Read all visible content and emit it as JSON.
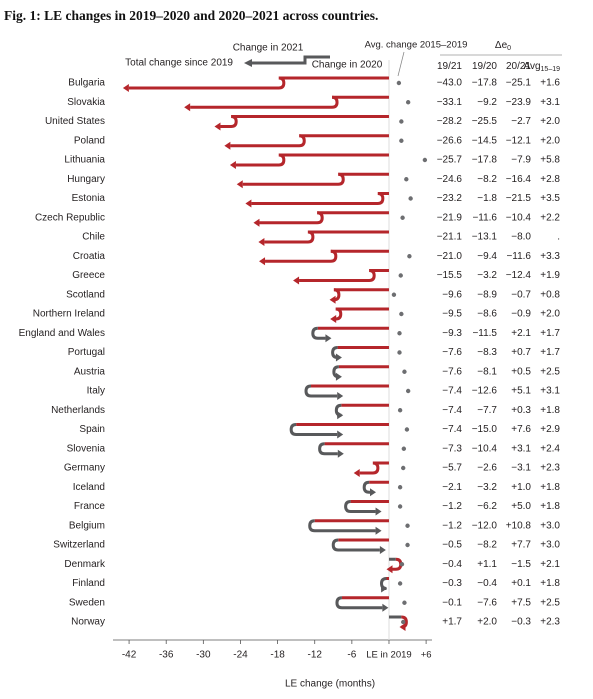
{
  "chart_data": {
    "type": "arrow",
    "title": "Fig. 1: LE changes in 2019–2020 and 2020–2021 across countries.",
    "legend": {
      "change_2021": "Change in 2021",
      "total": "Total change since 2019",
      "change_2020": "Change in 2020",
      "avg": "Avg. change 2015–2019"
    },
    "table_header": "Δe",
    "table_header_subscript": "0",
    "avg_subscript": "15–19",
    "xlabel": "LE change (months)",
    "xlim": [
      -44,
      7
    ],
    "xticks": [
      -42,
      -36,
      -30,
      -24,
      -18,
      -12,
      -6,
      {
        "value": 0,
        "label": "LE in 2019"
      },
      {
        "value": 6,
        "label": "+6"
      }
    ],
    "colors": {
      "decrease": "#b5262b",
      "increase": "#58595b",
      "avg": "#6d6e71"
    },
    "categories": [
      "Bulgaria",
      "Slovakia",
      "United States",
      "Poland",
      "Lithuania",
      "Hungary",
      "Estonia",
      "Czech Republic",
      "Chile",
      "Croatia",
      "Greece",
      "Scotland",
      "Northern Ireland",
      "England and Wales",
      "Portugal",
      "Austria",
      "Italy",
      "Netherlands",
      "Spain",
      "Slovenia",
      "Germany",
      "Iceland",
      "France",
      "Belgium",
      "Switzerland",
      "Denmark",
      "Finland",
      "Sweden",
      "Norway"
    ],
    "series": [
      {
        "name": "19/21",
        "values": [
          -43.0,
          -33.1,
          -28.2,
          -26.6,
          -25.7,
          -24.6,
          -23.2,
          -21.9,
          -21.1,
          -21.0,
          -15.5,
          -9.6,
          -9.5,
          -9.3,
          -7.6,
          -7.6,
          -7.4,
          -7.4,
          -7.4,
          -7.3,
          -5.7,
          -2.1,
          -1.2,
          -1.2,
          -0.5,
          -0.4,
          -0.3,
          -0.1,
          1.7
        ],
        "value_labels": [
          "−43.0",
          "−33.1",
          "−28.2",
          "−26.6",
          "−25.7",
          "−24.6",
          "−23.2",
          "−21.9",
          "−21.1",
          "−21.0",
          "−15.5",
          "−9.6",
          "−9.5",
          "−9.3",
          "−7.6",
          "−7.6",
          "−7.4",
          "−7.4",
          "−7.4",
          "−7.3",
          "−5.7",
          "−2.1",
          "−1.2",
          "−1.2",
          "−0.5",
          "−0.4",
          "−0.3",
          "−0.1",
          "+1.7"
        ]
      },
      {
        "name": "19/20",
        "values": [
          -17.8,
          -9.2,
          -25.5,
          -14.5,
          -17.8,
          -8.2,
          -1.8,
          -11.6,
          -13.1,
          -9.4,
          -3.2,
          -8.9,
          -8.6,
          -11.5,
          -8.3,
          -8.1,
          -12.6,
          -7.7,
          -15.0,
          -10.4,
          -2.6,
          -3.2,
          -6.2,
          -12.0,
          -8.2,
          1.1,
          -0.4,
          -7.6,
          2.0
        ],
        "value_labels": [
          "−17.8",
          "−9.2",
          "−25.5",
          "−14.5",
          "−17.8",
          "−8.2",
          "−1.8",
          "−11.6",
          "−13.1",
          "−9.4",
          "−3.2",
          "−8.9",
          "−8.6",
          "−11.5",
          "−8.3",
          "−8.1",
          "−12.6",
          "−7.7",
          "−15.0",
          "−10.4",
          "−2.6",
          "−3.2",
          "−6.2",
          "−12.0",
          "−8.2",
          "+1.1",
          "−0.4",
          "−7.6",
          "+2.0"
        ]
      },
      {
        "name": "20/21",
        "values": [
          -25.1,
          -23.9,
          -2.7,
          -12.1,
          -7.9,
          -16.4,
          -21.5,
          -10.4,
          -8.0,
          -11.6,
          -12.4,
          -0.7,
          -0.9,
          2.1,
          0.7,
          0.5,
          5.1,
          0.3,
          7.6,
          3.1,
          -3.1,
          1.0,
          5.0,
          10.8,
          7.7,
          -1.5,
          0.1,
          7.5,
          -0.3
        ],
        "value_labels": [
          "−25.1",
          "−23.9",
          "−2.7",
          "−12.1",
          "−7.9",
          "−16.4",
          "−21.5",
          "−10.4",
          "−8.0",
          "−11.6",
          "−12.4",
          "−0.7",
          "−0.9",
          "+2.1",
          "+0.7",
          "+0.5",
          "+5.1",
          "+0.3",
          "+7.6",
          "+3.1",
          "−3.1",
          "+1.0",
          "+5.0",
          "+10.8",
          "+7.7",
          "−1.5",
          "+0.1",
          "+7.5",
          "−0.3"
        ]
      },
      {
        "name": "Avg",
        "values": [
          1.6,
          3.1,
          2.0,
          2.0,
          5.8,
          2.8,
          3.5,
          2.2,
          null,
          3.3,
          1.9,
          0.8,
          2.0,
          1.7,
          1.7,
          2.5,
          3.1,
          1.8,
          2.9,
          2.4,
          2.3,
          1.8,
          1.8,
          3.0,
          3.0,
          2.1,
          1.8,
          2.5,
          2.3
        ],
        "value_labels": [
          "+1.6",
          "+3.1",
          "+2.0",
          "+2.0",
          "+5.8",
          "+2.8",
          "+3.5",
          "+2.2",
          ".",
          "+3.3",
          "+1.9",
          "+0.8",
          "+2.0",
          "+1.7",
          "+1.7",
          "+2.5",
          "+3.1",
          "+1.8",
          "+2.9",
          "+2.4",
          "+2.3",
          "+1.8",
          "+1.8",
          "+3.0",
          "+3.0",
          "+2.1",
          "+1.8",
          "+2.5",
          "+2.3"
        ]
      }
    ]
  }
}
